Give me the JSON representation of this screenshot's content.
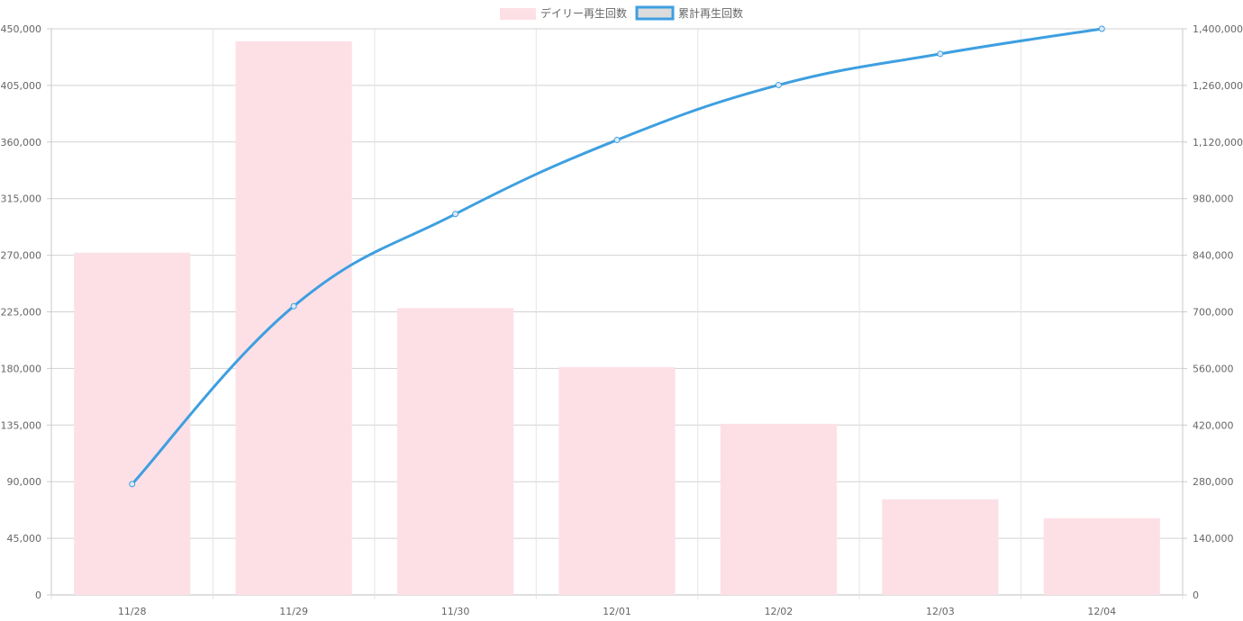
{
  "chart_data": {
    "type": "bar",
    "categories": [
      "11/28",
      "11/29",
      "11/30",
      "12/01",
      "12/02",
      "12/03",
      "12/04"
    ],
    "series": [
      {
        "name": "デイリー再生回数",
        "type": "bar",
        "axis": "left",
        "values": [
          272000,
          440000,
          228000,
          181000,
          136000,
          76000,
          61000
        ],
        "color": "#fde0e6"
      },
      {
        "name": "累計再生回数",
        "type": "line",
        "axis": "right",
        "values": [
          274000,
          714000,
          942000,
          1125000,
          1261000,
          1338000,
          1400000
        ],
        "color": "#3e9fe0"
      }
    ],
    "left_axis": {
      "min": 0,
      "max": 450000,
      "ticks": [
        "0",
        "45,000",
        "90,000",
        "135,000",
        "180,000",
        "225,000",
        "270,000",
        "315,000",
        "360,000",
        "405,000",
        "450,000"
      ]
    },
    "right_axis": {
      "min": 0,
      "max": 1400000,
      "ticks": [
        "0",
        "140,000",
        "280,000",
        "420,000",
        "560,000",
        "700,000",
        "840,000",
        "980,000",
        "1,120,000",
        "1,260,000",
        "1,400,000"
      ]
    },
    "legend_position": "top-center",
    "grid": true
  }
}
